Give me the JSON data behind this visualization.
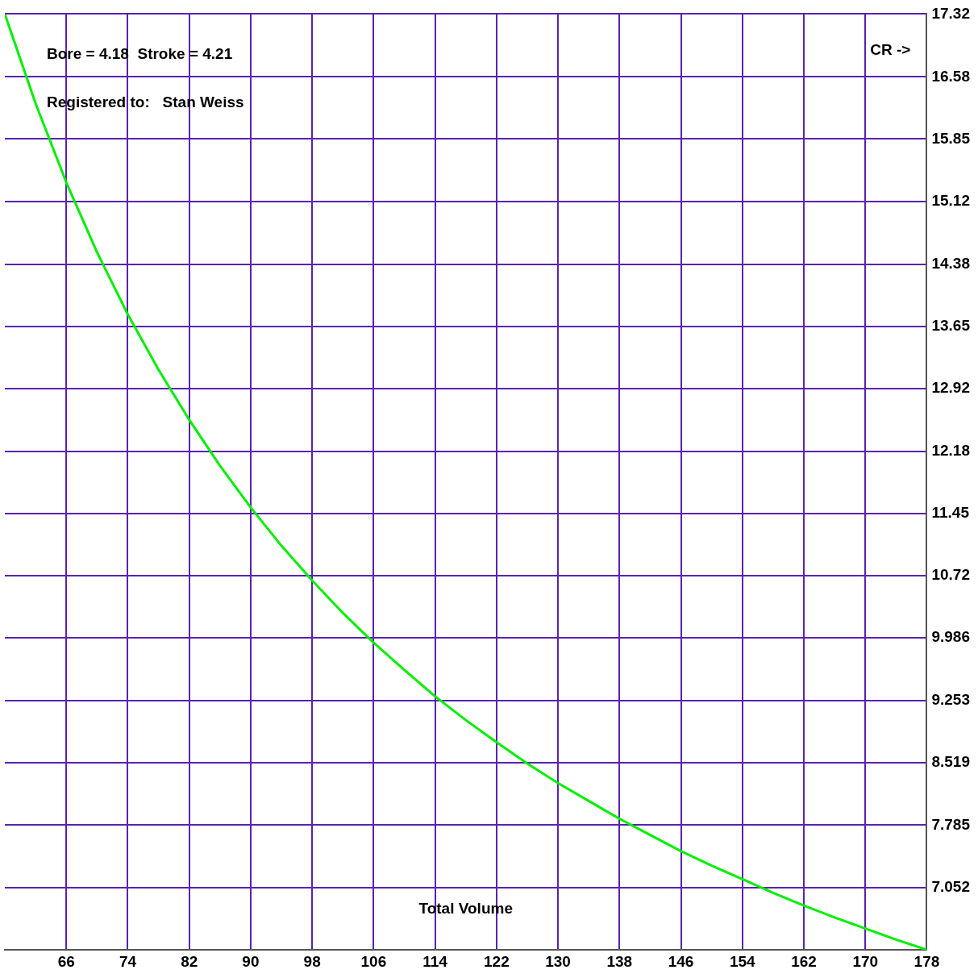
{
  "chart_data": {
    "type": "line",
    "xlabel": "Total Volume",
    "ylabel": "CR ->",
    "annotations": [
      "Bore = 4.18  Stroke = 4.21",
      "Registered to:   Stan Weiss"
    ],
    "x": [
      58,
      62,
      66,
      70,
      74,
      78,
      82,
      86,
      90,
      94,
      98,
      102,
      106,
      110,
      114,
      118,
      122,
      126,
      130,
      134,
      138,
      142,
      146,
      150,
      154,
      158,
      162,
      166,
      170,
      174,
      178
    ],
    "series": [
      {
        "color": "#00ee00",
        "values": [
          17.32,
          16.27,
          15.34,
          14.52,
          13.79,
          13.14,
          12.55,
          12.01,
          11.52,
          11.07,
          10.66,
          10.28,
          9.93,
          9.61,
          9.3,
          9.02,
          8.76,
          8.51,
          8.28,
          8.07,
          7.86,
          7.67,
          7.48,
          7.31,
          7.15,
          6.99,
          6.84,
          6.7,
          6.57,
          6.44,
          6.32
        ]
      }
    ],
    "xlim": [
      58,
      178
    ],
    "xticks": [
      66,
      74,
      82,
      90,
      98,
      106,
      114,
      122,
      130,
      138,
      146,
      154,
      162,
      170,
      178
    ],
    "ylim": [
      6.318,
      17.32
    ],
    "yticks": [
      17.32,
      16.58,
      15.85,
      15.12,
      14.38,
      13.65,
      12.92,
      12.18,
      11.45,
      10.72,
      9.986,
      9.253,
      8.519,
      7.785,
      7.052
    ],
    "grid": true,
    "legend": false,
    "marker": "none",
    "line_style": "solid"
  }
}
